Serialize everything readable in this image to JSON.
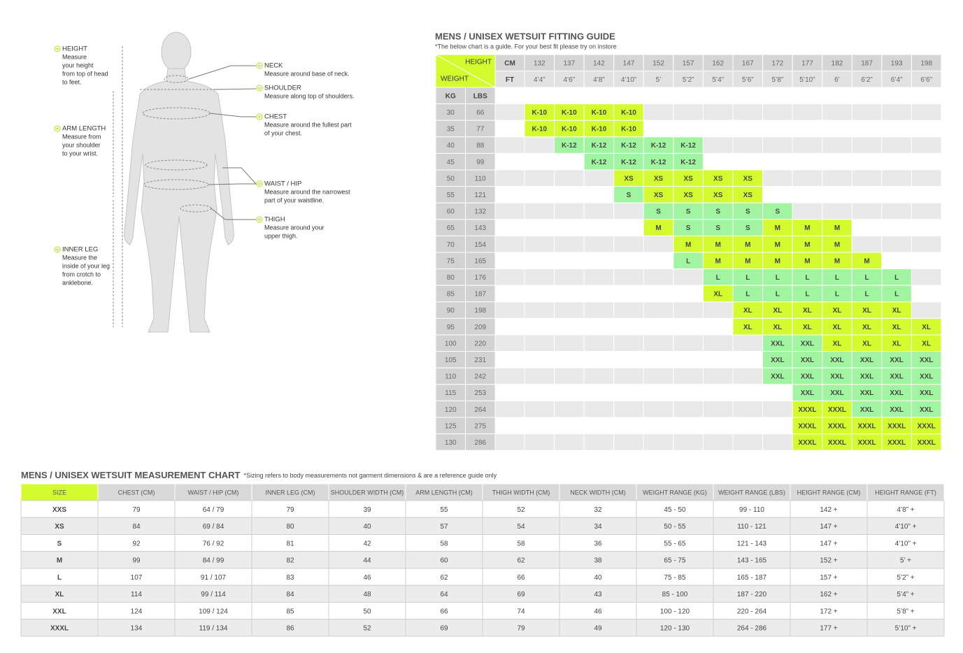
{
  "figure": {
    "measurements": [
      {
        "title": "HEIGHT",
        "lines": [
          "Measure",
          "your height",
          "from top of head",
          "to feet."
        ]
      },
      {
        "title": "ARM LENGTH",
        "lines": [
          "Measure from",
          "your shoulder",
          "to your wrist."
        ]
      },
      {
        "title": "INNER LEG",
        "lines": [
          "Measure the",
          "inside of your leg",
          "from crotch to",
          "anklebone."
        ]
      },
      {
        "title": "NECK",
        "lines": [
          "Measure around base of neck."
        ]
      },
      {
        "title": "SHOULDER",
        "lines": [
          "Measure along top of shoulders."
        ]
      },
      {
        "title": "CHEST",
        "lines": [
          "Measure around the fullest part",
          "of your chest."
        ]
      },
      {
        "title": "WAIST / HIP",
        "lines": [
          "Measure around the narrowest",
          "part of your waistline."
        ]
      },
      {
        "title": "THIGH",
        "lines": [
          "Measure around your",
          "upper thigh."
        ]
      }
    ]
  },
  "guide": {
    "title": "MENS / UNISEX WETSUIT FITTING GUIDE",
    "subtitle": "*The below chart is a guide. For your best fit please try on instore",
    "height_label": "HEIGHT",
    "weight_label": "WEIGHT",
    "cm_label": "CM",
    "ft_label": "FT",
    "kg_label": "KG",
    "lbs_label": "LBS",
    "heights_cm": [
      132,
      137,
      142,
      147,
      152,
      157,
      162,
      167,
      172,
      177,
      182,
      187,
      193,
      198
    ],
    "heights_ft": [
      "4’4”",
      "4’6”",
      "4’8”",
      "4’10”",
      "5’",
      "5’2”",
      "5’4”",
      "5’6”",
      "5’8”",
      "5’10”",
      "6’",
      "6’2”",
      "6’4”",
      "6’6”"
    ],
    "size_colors": {
      "K-10": "#d3fb2e",
      "K-12": "#a2f5a0",
      "XS": "#d3fb2e",
      "S": "#a2f5a0",
      "M": "#d3fb2e",
      "L": "#a2f5a0",
      "XL": "#d3fb2e",
      "XXL": "#a2f5a0",
      "XXXL": "#d3fb2e"
    },
    "rows": [
      {
        "kg": 30,
        "lbs": 66,
        "cells": [
          "K-10",
          "K-10",
          "K-10",
          "K-10",
          null,
          null,
          null,
          null,
          null,
          null,
          null,
          null,
          null,
          null
        ]
      },
      {
        "kg": 35,
        "lbs": 77,
        "cells": [
          "K-10",
          "K-10",
          "K-10",
          "K-10",
          null,
          null,
          null,
          null,
          null,
          null,
          null,
          null,
          null,
          null
        ]
      },
      {
        "kg": 40,
        "lbs": 88,
        "cells": [
          null,
          "K-12",
          "K-12",
          "K-12",
          "K-12",
          "K-12",
          null,
          null,
          null,
          null,
          null,
          null,
          null,
          null
        ]
      },
      {
        "kg": 45,
        "lbs": 99,
        "cells": [
          null,
          null,
          "K-12",
          "K-12",
          "K-12",
          "K-12",
          null,
          null,
          null,
          null,
          null,
          null,
          null,
          null
        ]
      },
      {
        "kg": 50,
        "lbs": 110,
        "cells": [
          null,
          null,
          null,
          "XS",
          "XS",
          "XS",
          "XS",
          "XS",
          null,
          null,
          null,
          null,
          null,
          null
        ]
      },
      {
        "kg": 55,
        "lbs": 121,
        "cells": [
          null,
          null,
          null,
          "S",
          "XS",
          "XS",
          "XS",
          "XS",
          null,
          null,
          null,
          null,
          null,
          null
        ]
      },
      {
        "kg": 60,
        "lbs": 132,
        "cells": [
          null,
          null,
          null,
          null,
          "S",
          "S",
          "S",
          "S",
          "S",
          null,
          null,
          null,
          null,
          null
        ]
      },
      {
        "kg": 65,
        "lbs": 143,
        "cells": [
          null,
          null,
          null,
          null,
          "M",
          "S",
          "S",
          "S",
          "M",
          "M",
          "M",
          null,
          null,
          null
        ]
      },
      {
        "kg": 70,
        "lbs": 154,
        "cells": [
          null,
          null,
          null,
          null,
          null,
          "M",
          "M",
          "M",
          "M",
          "M",
          "M",
          null,
          null,
          null
        ]
      },
      {
        "kg": 75,
        "lbs": 165,
        "cells": [
          null,
          null,
          null,
          null,
          null,
          "L",
          "M",
          "M",
          "M",
          "M",
          "M",
          "M",
          null,
          null
        ]
      },
      {
        "kg": 80,
        "lbs": 176,
        "cells": [
          null,
          null,
          null,
          null,
          null,
          null,
          "L",
          "L",
          "L",
          "L",
          "L",
          "L",
          "L",
          null
        ]
      },
      {
        "kg": 85,
        "lbs": 187,
        "cells": [
          null,
          null,
          null,
          null,
          null,
          null,
          "XL",
          "L",
          "L",
          "L",
          "L",
          "L",
          "L",
          null
        ]
      },
      {
        "kg": 90,
        "lbs": 198,
        "cells": [
          null,
          null,
          null,
          null,
          null,
          null,
          null,
          "XL",
          "XL",
          "XL",
          "XL",
          "XL",
          "XL",
          null
        ]
      },
      {
        "kg": 95,
        "lbs": 209,
        "cells": [
          null,
          null,
          null,
          null,
          null,
          null,
          null,
          "XL",
          "XL",
          "XL",
          "XL",
          "XL",
          "XL",
          "XL"
        ]
      },
      {
        "kg": 100,
        "lbs": 220,
        "cells": [
          null,
          null,
          null,
          null,
          null,
          null,
          null,
          null,
          "XXL",
          "XXL",
          "XL",
          "XL",
          "XL",
          "XL"
        ]
      },
      {
        "kg": 105,
        "lbs": 231,
        "cells": [
          null,
          null,
          null,
          null,
          null,
          null,
          null,
          null,
          "XXL",
          "XXL",
          "XXL",
          "XXL",
          "XXL",
          "XXL"
        ]
      },
      {
        "kg": 110,
        "lbs": 242,
        "cells": [
          null,
          null,
          null,
          null,
          null,
          null,
          null,
          null,
          "XXL",
          "XXL",
          "XXL",
          "XXL",
          "XXL",
          "XXL"
        ]
      },
      {
        "kg": 115,
        "lbs": 253,
        "cells": [
          null,
          null,
          null,
          null,
          null,
          null,
          null,
          null,
          null,
          "XXL",
          "XXL",
          "XXL",
          "XXL",
          "XXL"
        ]
      },
      {
        "kg": 120,
        "lbs": 264,
        "cells": [
          null,
          null,
          null,
          null,
          null,
          null,
          null,
          null,
          null,
          "XXXL",
          "XXXL",
          "XXL",
          "XXL",
          "XXL"
        ]
      },
      {
        "kg": 125,
        "lbs": 275,
        "cells": [
          null,
          null,
          null,
          null,
          null,
          null,
          null,
          null,
          null,
          "XXXL",
          "XXXL",
          "XXXL",
          "XXXL",
          "XXXL"
        ]
      },
      {
        "kg": 130,
        "lbs": 286,
        "cells": [
          null,
          null,
          null,
          null,
          null,
          null,
          null,
          null,
          null,
          "XXXL",
          "XXXL",
          "XXXL",
          "XXXL",
          "XXXL"
        ]
      }
    ]
  },
  "chart": {
    "title": "MENS / UNISEX WETSUIT MEASUREMENT CHART",
    "note": "*Sizing refers to body measurements not garment dimensions & are a reference guide only",
    "headers": [
      "SIZE",
      "CHEST (CM)",
      "WAIST / HIP (CM)",
      "INNER LEG (CM)",
      "SHOULDER WIDTH (CM)",
      "ARM LENGTH (CM)",
      "THIGH WIDTH (CM)",
      "NECK WIDTH (CM)",
      "WEIGHT RANGE (KG)",
      "WEIGHT RANGE (LBS)",
      "HEIGHT RANGE (CM)",
      "HEIGHT RANGE (FT)"
    ],
    "rows": [
      [
        "XXS",
        79,
        "64 / 79",
        79,
        39,
        55,
        52,
        32,
        "45 - 50",
        "99 - 110",
        "142 +",
        "4’8” +"
      ],
      [
        "XS",
        84,
        "69 / 84",
        80,
        40,
        57,
        54,
        34,
        "50 - 55",
        "110 - 121",
        "147 +",
        "4’10” +"
      ],
      [
        "S",
        92,
        "76 / 92",
        81,
        42,
        58,
        58,
        36,
        "55 - 65",
        "121 - 143",
        "147 +",
        "4’10” +"
      ],
      [
        "M",
        99,
        "84 / 99",
        82,
        44,
        60,
        62,
        38,
        "65 - 75",
        "143 - 165",
        "152 +",
        "5’ +"
      ],
      [
        "L",
        107,
        "91 / 107",
        83,
        46,
        62,
        66,
        40,
        "75 - 85",
        "165 - 187",
        "157 +",
        "5’2” +"
      ],
      [
        "XL",
        114,
        "99 / 114",
        84,
        48,
        64,
        69,
        43,
        "85 - 100",
        "187 - 220",
        "162 +",
        "5’4” +"
      ],
      [
        "XXL",
        124,
        "109 / 124",
        85,
        50,
        66,
        74,
        46,
        "100 - 120",
        "220 - 264",
        "172 +",
        "5’8” +"
      ],
      [
        "XXXL",
        134,
        "119 / 134",
        86,
        52,
        69,
        79,
        49,
        "120 - 130",
        "264 - 286",
        "177 +",
        "5’10” +"
      ]
    ]
  }
}
